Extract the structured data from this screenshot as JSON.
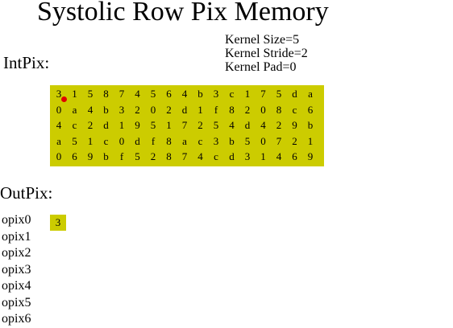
{
  "title": "Systolic Row Pix Memory",
  "kernel": {
    "size": "Kernel Size=5",
    "stride": "Kernel Stride=2",
    "pad": "Kernel Pad=0"
  },
  "input_label": "IntPix:",
  "output_label": "OutPix:",
  "input_grid": [
    [
      "3",
      "1",
      "5",
      "8",
      "7",
      "4",
      "5",
      "6",
      "4",
      "b",
      "3",
      "c",
      "1",
      "7",
      "5",
      "d",
      "a"
    ],
    [
      "0",
      "a",
      "4",
      "b",
      "3",
      "2",
      "0",
      "2",
      "d",
      "1",
      "f",
      "8",
      "2",
      "0",
      "8",
      "c",
      "6"
    ],
    [
      "4",
      "c",
      "2",
      "d",
      "1",
      "9",
      "5",
      "1",
      "7",
      "2",
      "5",
      "4",
      "d",
      "4",
      "2",
      "9",
      "b"
    ],
    [
      "a",
      "5",
      "1",
      "c",
      "0",
      "d",
      "f",
      "8",
      "a",
      "c",
      "3",
      "b",
      "5",
      "0",
      "7",
      "2",
      "1"
    ],
    [
      "0",
      "6",
      "9",
      "b",
      "f",
      "5",
      "2",
      "8",
      "7",
      "4",
      "c",
      "d",
      "3",
      "1",
      "4",
      "6",
      "9"
    ]
  ],
  "marker": {
    "row": 0,
    "col": 0,
    "color": "#e00000"
  },
  "outpix_labels": [
    "opix0",
    "opix1",
    "opix2",
    "opix3",
    "opix4",
    "opix5",
    "opix6"
  ],
  "outpix_values": [
    "3"
  ],
  "colors": {
    "cell_fill": "#cccc00",
    "background": "#ffffff",
    "text": "#000000"
  }
}
